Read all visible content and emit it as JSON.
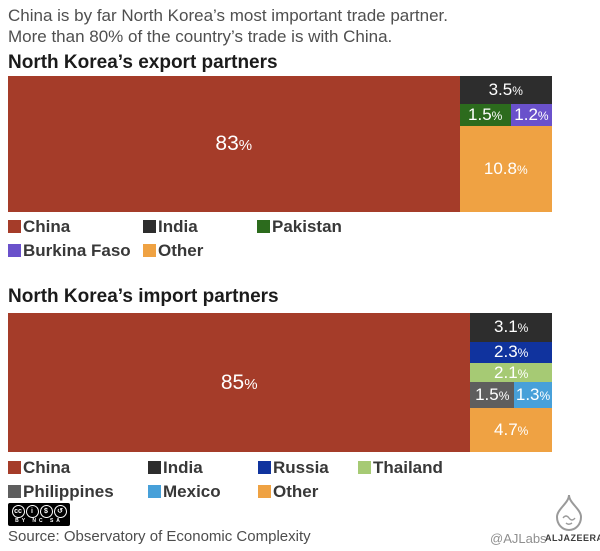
{
  "description": {
    "line1": "China is by far North Korea’s most important trade partner.",
    "line2": "More than 80% of the country’s trade is with China."
  },
  "chart_data": [
    {
      "type": "treemap",
      "title": "North Korea’s export partners",
      "unit": "%",
      "main_block": {
        "name": "China",
        "value": 83,
        "label": "83",
        "color": "#a53c29"
      },
      "right_rows": [
        {
          "cells": [
            {
              "name": "India",
              "value": 3.5,
              "label": "3.5",
              "color": "#2d2d2d"
            }
          ]
        },
        {
          "cells": [
            {
              "name": "Pakistan",
              "value": 1.5,
              "label": "1.5",
              "color": "#2c6b1d"
            },
            {
              "name": "Burkina Faso",
              "value": 1.2,
              "label": "1.2",
              "color": "#6a51cb"
            }
          ]
        },
        {
          "cells": [
            {
              "name": "Other",
              "value": 10.8,
              "label": "10.8",
              "color": "#efa243"
            }
          ]
        }
      ],
      "legend": [
        {
          "label": "China",
          "color": "#a53c29"
        },
        {
          "label": "India",
          "color": "#2d2d2d"
        },
        {
          "label": "Pakistan",
          "color": "#2c6b1d"
        },
        {
          "label": "Burkina Faso",
          "color": "#6a51cb"
        },
        {
          "label": "Other",
          "color": "#efa243"
        }
      ]
    },
    {
      "type": "treemap",
      "title": "North Korea’s import partners",
      "unit": "%",
      "main_block": {
        "name": "China",
        "value": 85,
        "label": "85",
        "color": "#a53c29"
      },
      "right_rows": [
        {
          "cells": [
            {
              "name": "India",
              "value": 3.1,
              "label": "3.1",
              "color": "#2d2d2d"
            }
          ]
        },
        {
          "cells": [
            {
              "name": "Russia",
              "value": 2.3,
              "label": "2.3",
              "color": "#10339e"
            }
          ]
        },
        {
          "cells": [
            {
              "name": "Thailand",
              "value": 2.1,
              "label": "2.1",
              "color": "#a6ca74"
            }
          ]
        },
        {
          "cells": [
            {
              "name": "Philippines",
              "value": 1.5,
              "label": "1.5",
              "color": "#5e5e5e"
            },
            {
              "name": "Mexico",
              "value": 1.3,
              "label": "1.3",
              "color": "#47a0d9"
            }
          ]
        },
        {
          "cells": [
            {
              "name": "Other",
              "value": 4.7,
              "label": "4.7",
              "color": "#efa243"
            }
          ]
        }
      ],
      "legend": [
        {
          "label": "China",
          "color": "#a53c29"
        },
        {
          "label": "India",
          "color": "#2d2d2d"
        },
        {
          "label": "Russia",
          "color": "#10339e"
        },
        {
          "label": "Thailand",
          "color": "#a6ca74"
        },
        {
          "label": "Philippines",
          "color": "#5e5e5e"
        },
        {
          "label": "Mexico",
          "color": "#47a0d9"
        },
        {
          "label": "Other",
          "color": "#efa243"
        }
      ]
    }
  ],
  "footer": {
    "source": "Source: Observatory of Economic Complexity",
    "credit": "@AJLabs",
    "brand": "ALJAZEERA",
    "cc_caption": "BY NC SA",
    "cc_glyphs": [
      "cc",
      "i",
      "$",
      "↺"
    ]
  }
}
